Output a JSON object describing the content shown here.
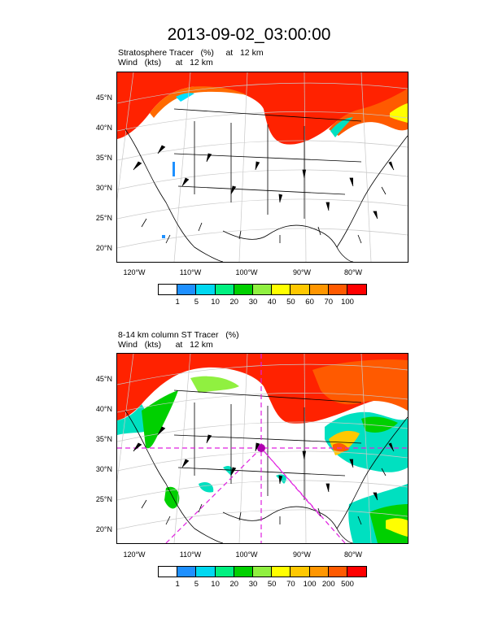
{
  "title": "2013-09-02_03:00:00",
  "panels": [
    {
      "subtitle1": "Stratosphere Tracer   (%)     at   12 km",
      "subtitle2": "Wind   (kts)      at   12 km",
      "lat_labels": [
        "45°N",
        "40°N",
        "35°N",
        "30°N",
        "25°N",
        "20°N"
      ],
      "lon_labels": [
        "120°W",
        "110°W",
        "100°W",
        "90°W",
        "80°W"
      ],
      "colorbar": {
        "colors": [
          "#ffffff",
          "#1e90ff",
          "#00d8f0",
          "#00f080",
          "#00d000",
          "#90f040",
          "#ffff00",
          "#ffc800",
          "#ff9600",
          "#ff5a00",
          "#ff0000"
        ],
        "labels": [
          "1",
          "5",
          "10",
          "20",
          "30",
          "40",
          "50",
          "60",
          "70",
          "100"
        ]
      }
    },
    {
      "subtitle1": "8-14 km column ST Tracer   (%)",
      "subtitle2": "Wind   (kts)      at   12 km",
      "lat_labels": [
        "45°N",
        "40°N",
        "35°N",
        "30°N",
        "25°N",
        "20°N"
      ],
      "lon_labels": [
        "120°W",
        "110°W",
        "100°W",
        "90°W",
        "80°W"
      ],
      "colorbar": {
        "colors": [
          "#ffffff",
          "#1e90ff",
          "#00d8f0",
          "#00f080",
          "#00d000",
          "#90f040",
          "#ffff00",
          "#ffc800",
          "#ff9600",
          "#ff5a00",
          "#ff0000"
        ],
        "labels": [
          "1",
          "5",
          "10",
          "20",
          "30",
          "50",
          "70",
          "100",
          "200",
          "500"
        ]
      }
    }
  ]
}
